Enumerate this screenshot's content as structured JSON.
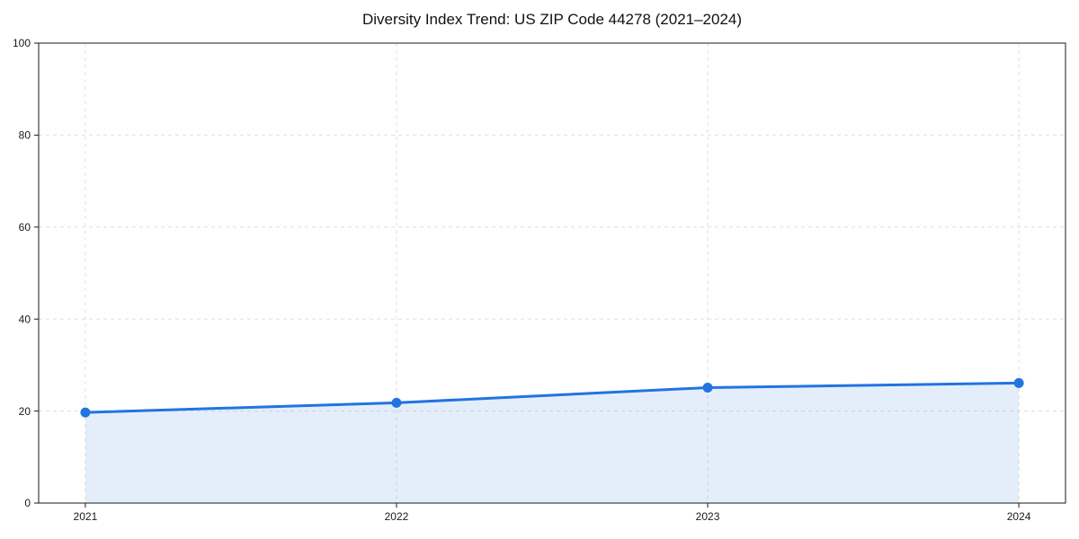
{
  "chart_data": {
    "type": "area",
    "title": "Diversity Index Trend: US ZIP Code 44278 (2021–2024)",
    "series_name": "Diversity Index",
    "x": [
      2021,
      2022,
      2023,
      2024
    ],
    "values": [
      19.7,
      21.8,
      25.1,
      26.1
    ],
    "xlabel": "",
    "ylabel": "",
    "xlim": [
      2020.85,
      2024.15
    ],
    "ylim": [
      0,
      100
    ],
    "y_ticks": [
      0,
      20,
      40,
      60,
      80,
      100
    ],
    "x_ticks": [
      2021,
      2022,
      2023,
      2024
    ],
    "grid": true,
    "legend_position": "none",
    "line_color": "#2274e0",
    "fill_color": "rgba(34,116,224,0.12)",
    "grid_color": "#e0e0e0",
    "spine_color": "#1a1a1a",
    "marker": "circle",
    "marker_radius": 5.5,
    "line_width": 3
  }
}
